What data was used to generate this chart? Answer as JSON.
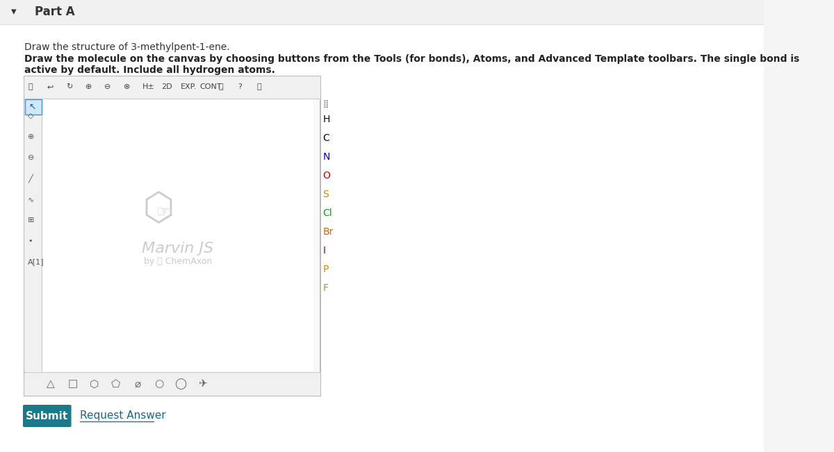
{
  "bg_color": "#f5f5f5",
  "panel_bg": "#ffffff",
  "title": "Part A",
  "title_arrow": "▾",
  "line1": "Draw the structure of 3-methylpent-1-ene.",
  "line2": "Draw the molecule on the canvas by choosing buttons from the Tools (for bonds), Atoms, and Advanced Template toolbars. The single bond is active by default. Include all hydrogen atoms.",
  "canvas_border": "#cccccc",
  "canvas_bg": "#f9f9f9",
  "marvin_text": "Marvin JS",
  "marvin_sub": "by Ⓢ ChemAxon",
  "marvin_color": "#cccccc",
  "atom_labels": [
    "H",
    "C",
    "N",
    "O",
    "S",
    "Cl",
    "Br",
    "I",
    "P",
    "F"
  ],
  "atom_colors": [
    "#000000",
    "#000000",
    "#0000cc",
    "#cc0000",
    "#cc8800",
    "#00aa00",
    "#cc6600",
    "#770077",
    "#dd8800",
    "#dd8800"
  ],
  "submit_bg": "#1a7a8a",
  "submit_text": "Submit",
  "submit_text_color": "#ffffff",
  "request_text": "Request Answer",
  "request_color": "#1a6688"
}
